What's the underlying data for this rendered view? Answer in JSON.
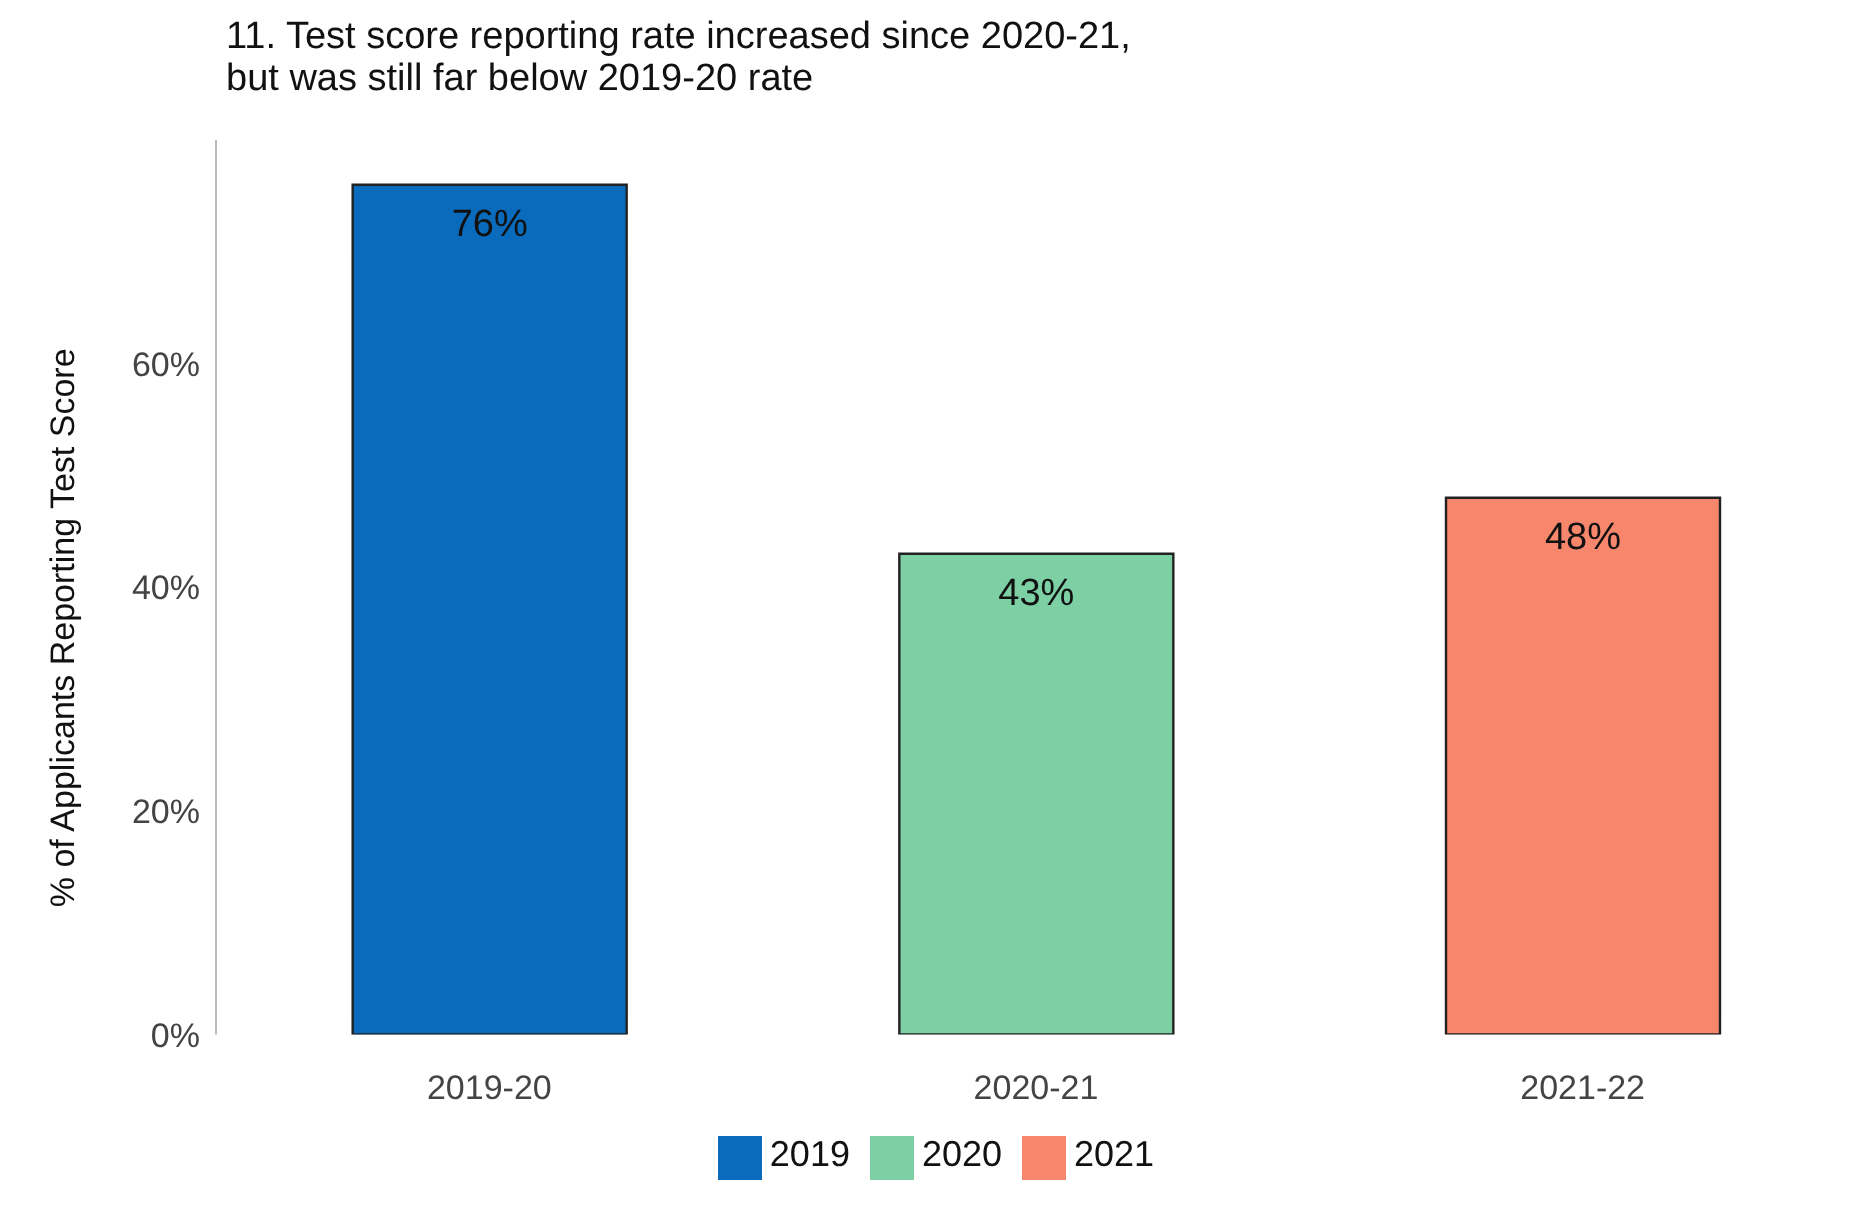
{
  "chart_data": {
    "type": "bar",
    "title": "11. Test score reporting rate increased since 2020-21,\nbut was still far below 2019-20 rate",
    "ylabel": "% of Applicants Reporting Test Score",
    "categories": [
      "2019-20",
      "2020-21",
      "2021-22"
    ],
    "stacked": true,
    "series": [
      {
        "name": "2019",
        "color": "#0a6bbd",
        "values": [
          76,
          null,
          null
        ],
        "value_labels": [
          "76%",
          null,
          null
        ]
      },
      {
        "name": "2020",
        "color": "#7dcfa4",
        "values": [
          null,
          43,
          null
        ],
        "value_labels": [
          null,
          "43%",
          null
        ]
      },
      {
        "name": "2021",
        "color": "#f7876c",
        "values": [
          null,
          null,
          48
        ],
        "value_labels": [
          null,
          null,
          "48%"
        ]
      }
    ],
    "ylim": [
      0,
      80
    ],
    "yticks": [
      {
        "value": 0,
        "label": "0%"
      },
      {
        "value": 20,
        "label": "20%"
      },
      {
        "value": 40,
        "label": "40%"
      },
      {
        "value": 60,
        "label": "60%"
      }
    ],
    "grid": false,
    "legend": "bottom"
  }
}
